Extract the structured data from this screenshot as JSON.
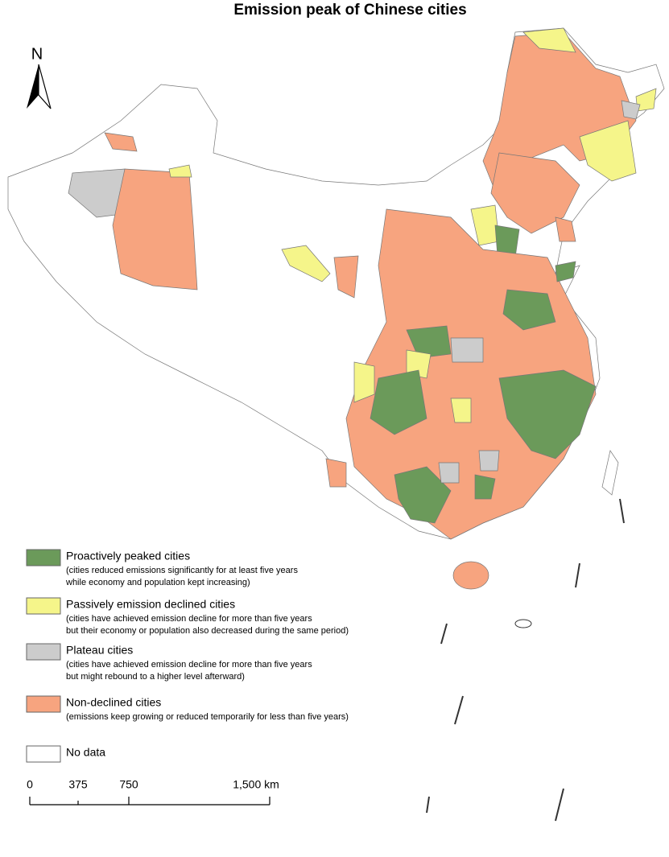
{
  "title": "Emission peak of Chinese cities",
  "north_label": "N",
  "legend": [
    {
      "label": "Proactively peaked cities",
      "description": [
        "(cities reduced emissions significantly for at least five years",
        "while economy and population kept increasing)"
      ],
      "color": "#6b9a5a"
    },
    {
      "label": "Passively emission declined cities",
      "description": [
        "(cities have achieved emission decline for more than five years",
        "but their economy or population also decreased during the same period)"
      ],
      "color": "#f5f58a"
    },
    {
      "label": "Plateau cities",
      "description": [
        "(cities have achieved emission decline for more than five years",
        "but might rebound to a higher level afterward)"
      ],
      "color": "#cccccc"
    },
    {
      "label": "Non-declined cities",
      "description": [
        "(emissions keep growing or reduced temporarily for less than five years)"
      ],
      "color": "#f7a47f"
    },
    {
      "label": "No data",
      "description": [],
      "color": "#ffffff"
    }
  ],
  "scale_bar": {
    "labels": [
      "0",
      "375",
      "750",
      "1,500 km"
    ]
  }
}
